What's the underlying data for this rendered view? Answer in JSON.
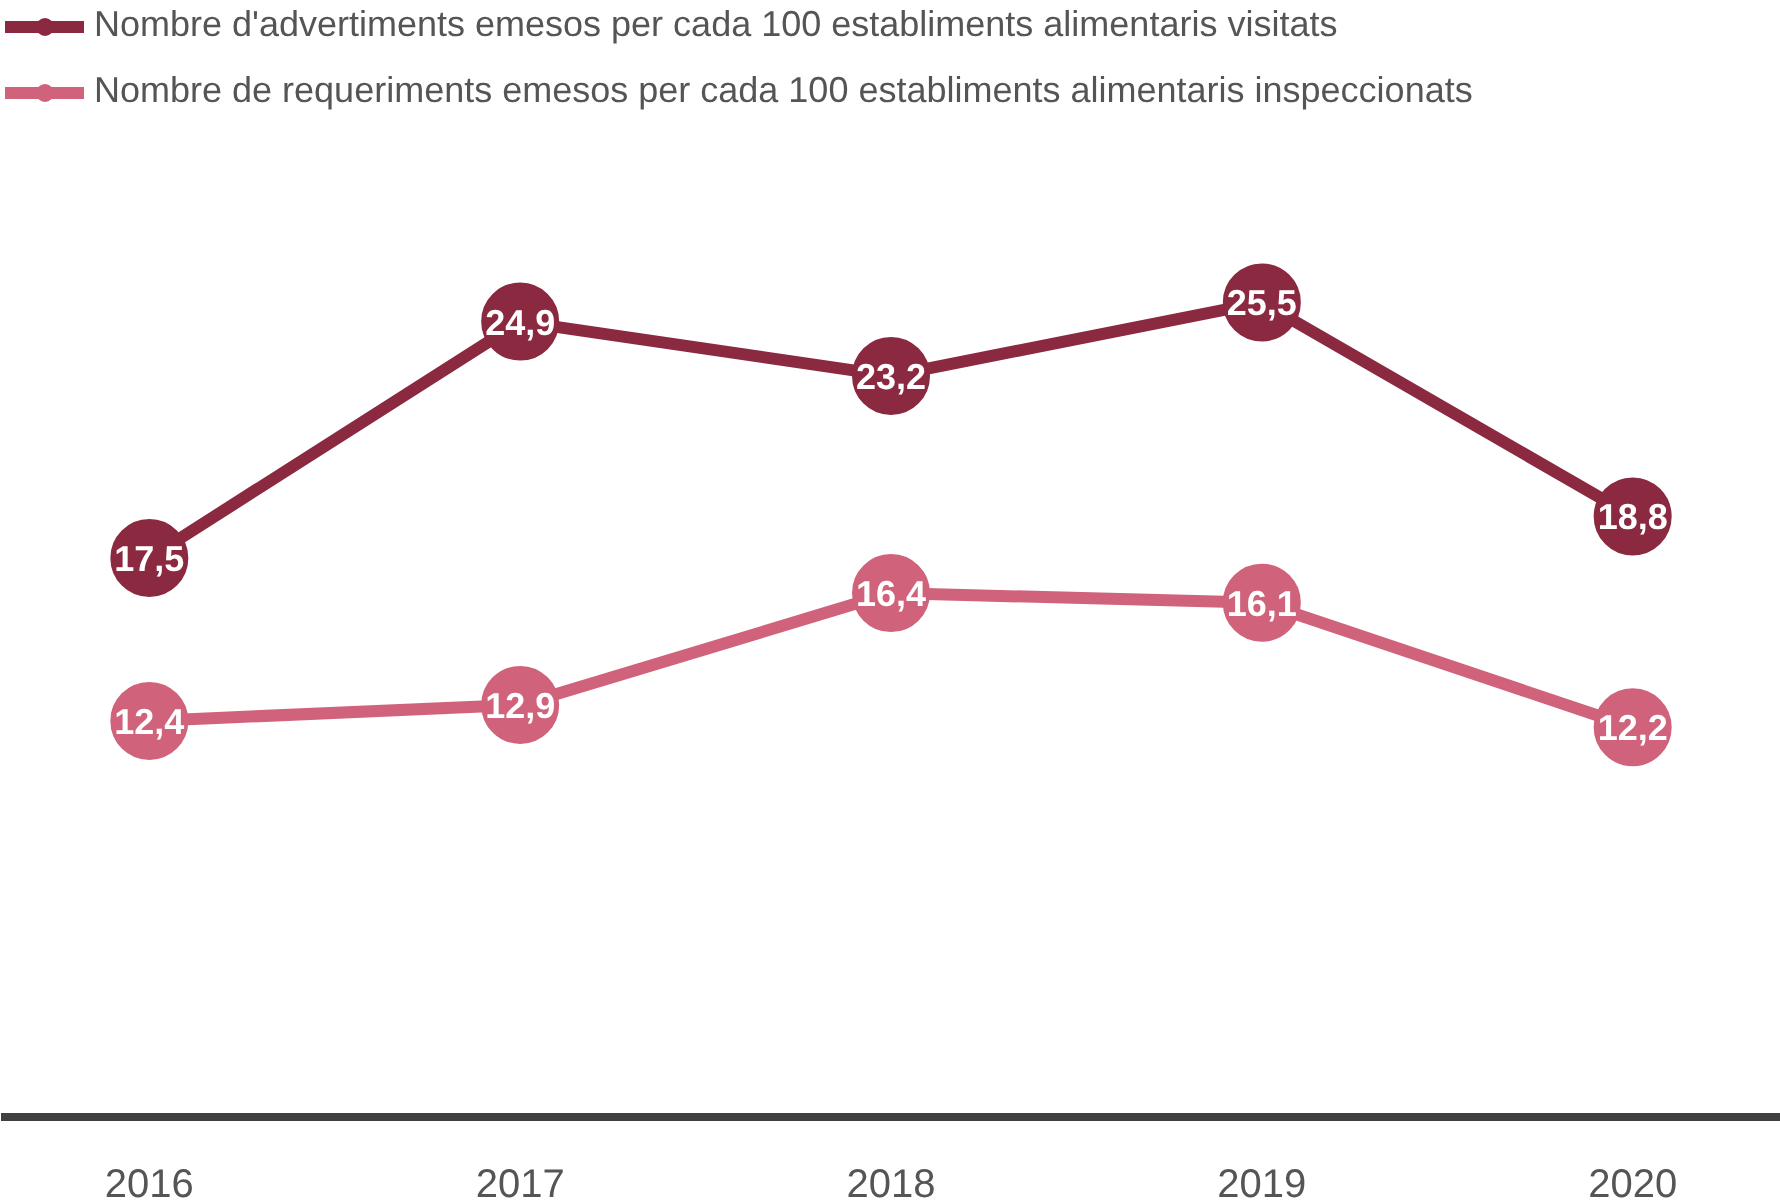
{
  "chart_data": {
    "type": "line",
    "categories": [
      "2016",
      "2017",
      "2018",
      "2019",
      "2020"
    ],
    "series": [
      {
        "name": "Nombre d'advertiments emesos per cada 100 establiments alimentaris visitats",
        "color": "#8b2940",
        "values": [
          17.5,
          24.9,
          23.2,
          25.5,
          18.8
        ],
        "value_labels": [
          "17,5",
          "24,9",
          "23,2",
          "25,5",
          "18,8"
        ]
      },
      {
        "name": "Nombre de requeriments emesos per cada 100 establiments alimentaris inspeccionats",
        "color": "#d0637b",
        "values": [
          12.4,
          12.9,
          16.4,
          16.1,
          12.2
        ],
        "value_labels": [
          "12,4",
          "12,9",
          "16,4",
          "16,1",
          "12,2"
        ]
      }
    ],
    "legend": "top left",
    "marker": "circle",
    "line_style": "solid",
    "grid": false,
    "tick_labels": "x"
  }
}
